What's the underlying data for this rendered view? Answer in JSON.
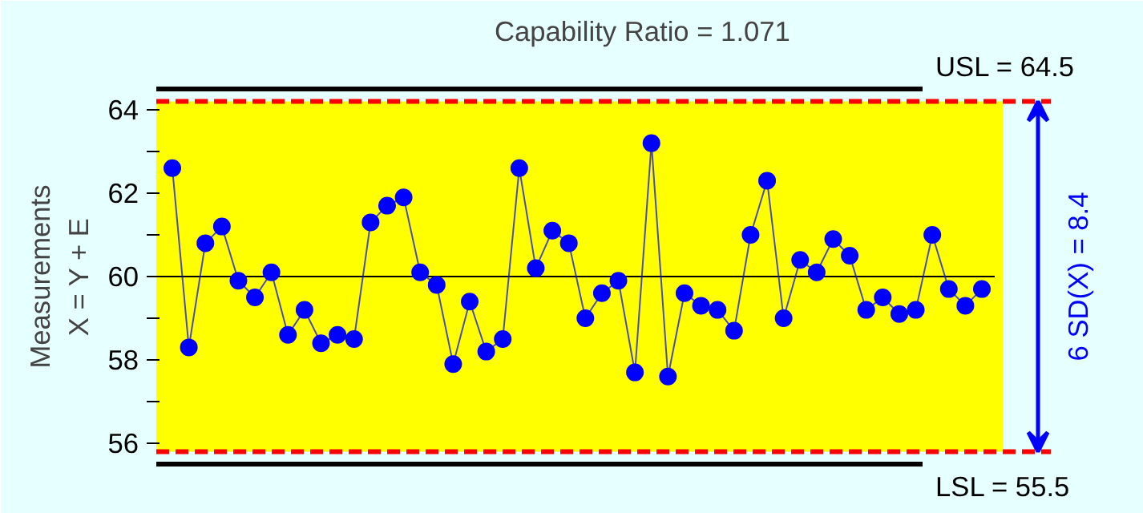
{
  "chart_data": {
    "type": "line",
    "title": "Capability Ratio  =  1.071",
    "ylabel": "Measurements\nX = Y + E",
    "categories": [
      null,
      null,
      null,
      null,
      null,
      null,
      null,
      null,
      null,
      null,
      null,
      null,
      null,
      null,
      null,
      null,
      null,
      null,
      null,
      null,
      null,
      null,
      null,
      null,
      null,
      null,
      null,
      null,
      null,
      null,
      null,
      null,
      null,
      null,
      null,
      null,
      null,
      null,
      null,
      null,
      null,
      null,
      null,
      null,
      null,
      null,
      null,
      null,
      null,
      null
    ],
    "series": [
      {
        "color": "#0000ff",
        "values": [
          62.6,
          58.3,
          60.8,
          61.2,
          59.9,
          59.5,
          60.1,
          58.6,
          59.2,
          58.4,
          58.6,
          58.5,
          61.3,
          61.7,
          61.9,
          60.1,
          59.8,
          57.9,
          59.4,
          58.2,
          58.5,
          62.6,
          60.2,
          61.1,
          60.8,
          59.0,
          59.6,
          59.9,
          57.7,
          63.2,
          57.6,
          59.6,
          59.3,
          59.2,
          58.7,
          61.0,
          62.3,
          59.0,
          60.4,
          60.1,
          60.9,
          60.5,
          59.2,
          59.5,
          59.1,
          59.2,
          61.0,
          59.7,
          59.3,
          59.7
        ]
      }
    ],
    "marker": "circle",
    "grid": false,
    "tick_labels": "y",
    "ylim": [
      54.5,
      65.5
    ],
    "yticks": [
      56,
      {
        "value": 57,
        "label": null
      },
      58,
      {
        "value": 59,
        "label": null
      },
      60,
      {
        "value": 61,
        "label": null
      },
      62,
      {
        "value": 63,
        "label": null
      },
      64
    ],
    "ref_lines": [
      {
        "axis": "y",
        "value": 64.5,
        "label": "USL = 64.5",
        "color": "#000000"
      },
      {
        "axis": "y",
        "value": 55.5,
        "label": "LSL = 55.5",
        "color": "#000000"
      },
      {
        "axis": "y",
        "value": 60,
        "label": null,
        "color": "#000000"
      },
      {
        "axis": "y",
        "value": 64.2,
        "label": null,
        "color": "#ff0000",
        "line_style": "dashed"
      },
      {
        "axis": "y",
        "value": 55.8,
        "label": null,
        "color": "#ff0000",
        "line_style": "dashed"
      }
    ],
    "bands": [
      {
        "axis": "y",
        "from": 55.8,
        "to": 64.2,
        "label": "6 SD(X) = 8.4",
        "color": "#ffff00"
      }
    ]
  }
}
